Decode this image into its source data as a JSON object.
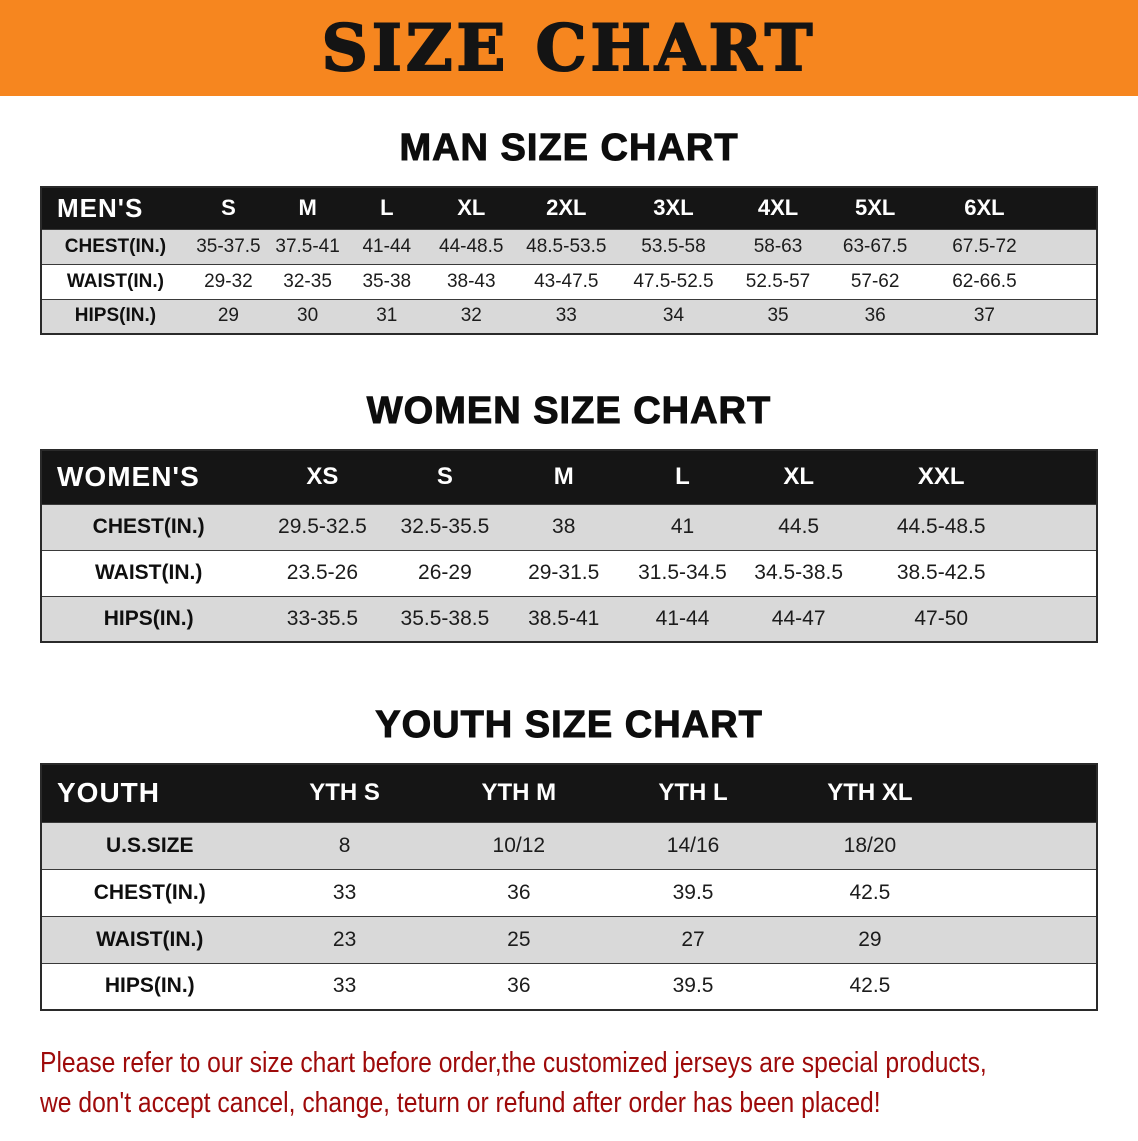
{
  "banner": {
    "title": "SIZE CHART"
  },
  "colors": {
    "banner_bg": "#f6861f",
    "table_header_bg": "#151515",
    "stripe_bg": "#d9d9d9",
    "note_text": "#9e0a0a",
    "title_text": "#0d0d0d"
  },
  "men": {
    "title": "MAN SIZE CHART",
    "corner": "MEN'S",
    "sizes": [
      "S",
      "M",
      "L",
      "XL",
      "2XL",
      "3XL",
      "4XL",
      "5XL",
      "6XL"
    ],
    "rows": [
      {
        "label": "CHEST(IN.)",
        "values": [
          "35-37.5",
          "37.5-41",
          "41-44",
          "44-48.5",
          "48.5-53.5",
          "53.5-58",
          "58-63",
          "63-67.5",
          "67.5-72"
        ]
      },
      {
        "label": "WAIST(IN.)",
        "values": [
          "29-32",
          "32-35",
          "35-38",
          "38-43",
          "43-47.5",
          "47.5-52.5",
          "52.5-57",
          "57-62",
          "62-66.5"
        ]
      },
      {
        "label": "HIPS(IN.)",
        "values": [
          "29",
          "30",
          "31",
          "32",
          "33",
          "34",
          "35",
          "36",
          "37"
        ]
      }
    ]
  },
  "women": {
    "title": "WOMEN SIZE CHART",
    "corner": "WOMEN'S",
    "sizes": [
      "XS",
      "S",
      "M",
      "L",
      "XL",
      "XXL"
    ],
    "rows": [
      {
        "label": "CHEST(IN.)",
        "values": [
          "29.5-32.5",
          "32.5-35.5",
          "38",
          "41",
          "44.5",
          "44.5-48.5"
        ]
      },
      {
        "label": "WAIST(IN.)",
        "values": [
          "23.5-26",
          "26-29",
          "29-31.5",
          "31.5-34.5",
          "34.5-38.5",
          "38.5-42.5"
        ]
      },
      {
        "label": "HIPS(IN.)",
        "values": [
          "33-35.5",
          "35.5-38.5",
          "38.5-41",
          "41-44",
          "44-47",
          "47-50"
        ]
      }
    ]
  },
  "youth": {
    "title": "YOUTH SIZE CHART",
    "corner": "YOUTH",
    "sizes": [
      "YTH S",
      "YTH M",
      "YTH L",
      "YTH XL"
    ],
    "rows": [
      {
        "label": "U.S.SIZE",
        "values": [
          "8",
          "10/12",
          "14/16",
          "18/20"
        ]
      },
      {
        "label": "CHEST(IN.)",
        "values": [
          "33",
          "36",
          "39.5",
          "42.5"
        ]
      },
      {
        "label": "WAIST(IN.)",
        "values": [
          "23",
          "25",
          "27",
          "29"
        ]
      },
      {
        "label": "HIPS(IN.)",
        "values": [
          "33",
          "36",
          "39.5",
          "42.5"
        ]
      }
    ]
  },
  "note": {
    "lines": [
      "Please refer to our size chart before order,the customized jerseys are special products,",
      "we don't accept cancel, change, teturn or refund after order has been placed!"
    ]
  }
}
